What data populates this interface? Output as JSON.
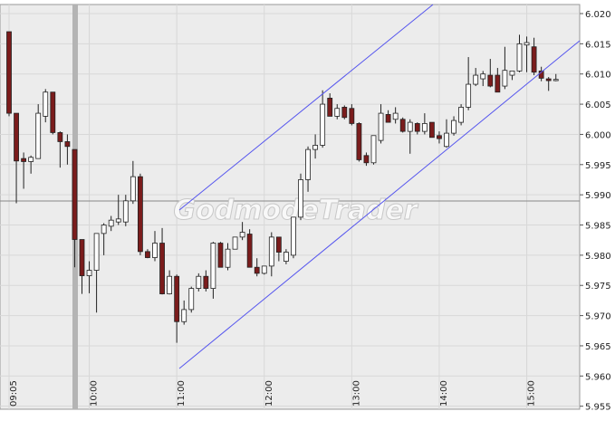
{
  "chart_data": {
    "type": "candlestick",
    "watermark": "GodmodeTrader",
    "categories": [
      "09:05",
      null,
      null,
      null,
      null,
      null,
      null,
      null,
      null,
      null,
      null,
      "10:00",
      null,
      null,
      null,
      null,
      null,
      null,
      null,
      null,
      null,
      null,
      null,
      "11:00",
      null,
      null,
      null,
      null,
      null,
      null,
      null,
      null,
      null,
      null,
      null,
      "12:00",
      null,
      null,
      null,
      null,
      null,
      null,
      null,
      null,
      null,
      null,
      null,
      "13:00",
      null,
      null,
      null,
      null,
      null,
      null,
      null,
      null,
      null,
      null,
      null,
      "14:00",
      null,
      null,
      null,
      null,
      null,
      null,
      null,
      null,
      null,
      null,
      null,
      "15:00",
      null,
      null,
      null,
      null
    ],
    "open": [
      6.017,
      6.0035,
      5.996,
      5.9955,
      5.996,
      6.003,
      6.007,
      6.0003,
      5.9988,
      5.9975,
      5.9826,
      5.9766,
      5.9775,
      5.9836,
      5.9848,
      5.9855,
      5.9855,
      5.989,
      5.993,
      5.9806,
      5.9796,
      5.982,
      5.9736,
      5.9765,
      5.969,
      5.971,
      5.9745,
      5.9765,
      5.9745,
      5.982,
      5.978,
      5.981,
      5.983,
      5.9835,
      5.978,
      5.977,
      5.9782,
      5.983,
      5.979,
      5.98,
      5.9863,
      5.9925,
      5.9975,
      5.9982,
      6.006,
      6.003,
      6.0045,
      6.0043,
      6.0018,
      5.9965,
      5.9953,
      5.999,
      6.0033,
      6.0025,
      6.0025,
      6.0005,
      6.0018,
      6.0005,
      6.002,
      5.9998,
      5.998,
      6.0002,
      6.002,
      6.0045,
      6.0083,
      6.0092,
      6.0098,
      6.0098,
      6.008,
      6.0098,
      6.0105,
      6.0148,
      6.0145,
      6.0105,
      6.0092,
      6.0089
    ],
    "high": [
      6.017,
      6.0035,
      5.997,
      5.9965,
      6.005,
      6.0075,
      6.007,
      6.0005,
      6.0,
      5.9975,
      5.9826,
      5.979,
      5.9836,
      5.9853,
      5.9865,
      5.99,
      5.99,
      5.9956,
      5.9935,
      5.981,
      5.984,
      5.9845,
      5.9775,
      5.9768,
      5.9725,
      5.9748,
      5.977,
      5.9775,
      5.9822,
      5.9822,
      5.982,
      5.983,
      5.9855,
      5.9843,
      5.9795,
      5.9782,
      5.9838,
      5.983,
      5.981,
      5.986,
      5.9935,
      5.998,
      6.0,
      6.0073,
      6.0068,
      6.005,
      6.0048,
      6.005,
      6.002,
      5.997,
      5.9995,
      6.005,
      6.004,
      6.0045,
      6.0028,
      6.0025,
      6.002,
      6.0035,
      6.002,
      6.0005,
      6.0025,
      6.003,
      6.005,
      6.0128,
      6.011,
      6.0105,
      6.0125,
      6.011,
      6.0145,
      6.0105,
      6.0165,
      6.0162,
      6.016,
      6.0112,
      6.0095,
      6.01
    ],
    "low": [
      6.003,
      5.9886,
      5.991,
      5.9935,
      5.996,
      6.002,
      6.0,
      5.9945,
      5.995,
      5.978,
      5.9736,
      5.9737,
      5.9705,
      5.98,
      5.984,
      5.985,
      5.9848,
      5.9885,
      5.98,
      5.9795,
      5.979,
      5.9735,
      5.9735,
      5.9655,
      5.9685,
      5.9705,
      5.974,
      5.974,
      5.9728,
      5.978,
      5.9775,
      5.981,
      5.9825,
      5.978,
      5.9765,
      5.9768,
      5.9765,
      5.979,
      5.9785,
      5.9795,
      5.9858,
      5.9905,
      5.996,
      5.9978,
      6.003,
      6.0025,
      6.0025,
      6.0015,
      5.9955,
      5.9948,
      5.995,
      5.9985,
      6.002,
      6.0018,
      6.0003,
      5.9968,
      6.0,
      6.0,
      5.9995,
      5.9985,
      5.9978,
      5.9998,
      6.0015,
      6.004,
      6.008,
      6.008,
      6.0078,
      6.007,
      6.0075,
      6.009,
      6.0103,
      6.0103,
      6.0098,
      6.0088,
      6.0072,
      6.0088
    ],
    "close": [
      6.0035,
      5.9956,
      5.9955,
      5.9962,
      6.0035,
      6.007,
      6.0003,
      5.9988,
      5.998,
      5.9826,
      5.9766,
      5.9775,
      5.9836,
      5.985,
      5.9858,
      5.986,
      5.989,
      5.993,
      5.9806,
      5.9796,
      5.982,
      5.9736,
      5.9765,
      5.969,
      5.971,
      5.9745,
      5.9765,
      5.9745,
      5.982,
      5.978,
      5.981,
      5.983,
      5.9838,
      5.978,
      5.977,
      5.9782,
      5.983,
      5.9805,
      5.9805,
      5.9863,
      5.9925,
      5.9975,
      5.9982,
      6.005,
      6.003,
      6.0043,
      6.0028,
      6.0018,
      5.9958,
      5.9953,
      5.9998,
      6.0035,
      6.002,
      6.0035,
      6.0005,
      6.002,
      6.0005,
      6.0018,
      5.9995,
      5.9993,
      6.0002,
      6.0023,
      6.0045,
      6.0083,
      6.0098,
      6.01,
      6.008,
      6.007,
      6.0106,
      6.0105,
      6.015,
      6.0152,
      6.0103,
      6.0093,
      6.0089,
      6.0091
    ],
    "up_color": "#ffffff",
    "down_color": "#7b1c1c",
    "ylim": [
      5.9545,
      6.0215
    ],
    "yticks": [
      {
        "value": 6.02,
        "label": "6.020"
      },
      6.015,
      {
        "value": 6.01,
        "label": "6.010"
      },
      6.005,
      {
        "value": 6.0,
        "label": "6.000"
      },
      5.995,
      {
        "value": 5.99,
        "label": "5.990"
      },
      5.985,
      {
        "value": 5.98,
        "label": "5.980"
      },
      5.975,
      {
        "value": 5.97,
        "label": "5.970"
      },
      5.965,
      {
        "value": 5.96,
        "label": "5.960"
      },
      5.955
    ],
    "grid": true
  }
}
